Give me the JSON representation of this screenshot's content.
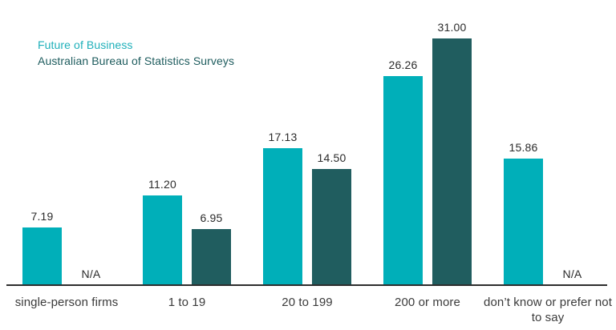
{
  "legend": {
    "series1_label": "Future of Business",
    "series2_label": "Australian Bureau of Statistics Surveys"
  },
  "chart_data": {
    "type": "bar",
    "title": "",
    "xlabel": "",
    "ylabel": "",
    "categories": [
      "single-person firms",
      "1 to 19",
      "20 to 199",
      "200 or more",
      "don’t know or prefer not to say"
    ],
    "series": [
      {
        "name": "Future of Business",
        "color": "#00AFB9",
        "values": [
          7.19,
          11.2,
          17.13,
          26.26,
          15.86
        ]
      },
      {
        "name": "Australian Bureau of Statistics Surveys",
        "color": "#205D5F",
        "values": [
          null,
          6.95,
          14.5,
          31.0,
          null
        ]
      }
    ],
    "na_label": "N/A",
    "value_labels_decimals": 2,
    "ylim": [
      0,
      31
    ],
    "grid": false,
    "y_axis_visible": false,
    "legend_position": "top-left"
  }
}
